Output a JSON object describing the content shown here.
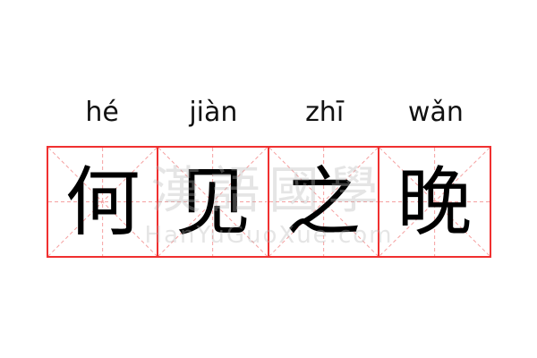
{
  "pinyin": [
    "hé",
    "jiàn",
    "zhī",
    "wǎn"
  ],
  "characters": [
    "何",
    "见",
    "之",
    "晚"
  ],
  "watermark": {
    "chinese": "漢語國學",
    "latin": "HanYuGuoXue.com"
  },
  "colors": {
    "border": "#f03030",
    "guide": "#f5a0a0",
    "text": "#000000"
  }
}
